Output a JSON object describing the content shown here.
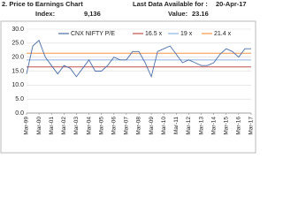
{
  "header": {
    "title": "2. Price to Earnings Chart",
    "last_label": "Last Data Available for :",
    "last_date": "20-Apr-17",
    "index_label": "Index:",
    "index_value": "9,136",
    "value_label": "Value:",
    "value": "23.16"
  },
  "chart_data": {
    "type": "line",
    "categories": [
      "Mar-99",
      null,
      "Mar-00",
      null,
      "Mar-01",
      null,
      "Mar-02",
      null,
      "Mar-03",
      null,
      "Mar-04",
      null,
      "Mar-05",
      null,
      "Mar-06",
      null,
      "Mar-07",
      null,
      "Mar-08",
      null,
      "Mar-09",
      null,
      "Mar-10",
      null,
      "Mar-11",
      null,
      "Mar-12",
      null,
      "Mar-13",
      null,
      "Mar-14",
      null,
      "Mar-15",
      null,
      "Mar-16",
      null,
      "Mar-17"
    ],
    "series": [
      {
        "name": "CNX NIFTY P/E",
        "color": "#4a6fa5",
        "values": [
          14,
          24,
          26,
          20,
          17,
          14,
          17,
          16,
          13,
          16,
          19,
          15,
          15,
          17,
          20,
          19,
          19,
          22,
          22,
          18,
          13,
          22,
          23,
          24,
          21,
          18,
          19,
          18,
          17,
          17,
          18,
          21,
          23,
          22,
          20,
          23,
          23
        ]
      }
    ],
    "reference_lines": [
      {
        "name": "16.5 x",
        "value": 16.5,
        "color": "#c0504d"
      },
      {
        "name": "19 x",
        "value": 19,
        "color": "#8db3e2"
      },
      {
        "name": "21.4 x",
        "value": 21.4,
        "color": "#f79646"
      }
    ],
    "ylim": [
      0,
      30
    ],
    "yticks": [
      {
        "value": 0,
        "label": "0.0"
      },
      {
        "value": 5,
        "label": "5.0"
      },
      {
        "value": 10,
        "label": "10.0"
      },
      {
        "value": 15,
        "label": "15.0"
      },
      {
        "value": 20,
        "label": "20.0"
      },
      {
        "value": 25,
        "label": "25.0"
      },
      {
        "value": 30,
        "label": "30.0"
      }
    ],
    "grid": true
  }
}
